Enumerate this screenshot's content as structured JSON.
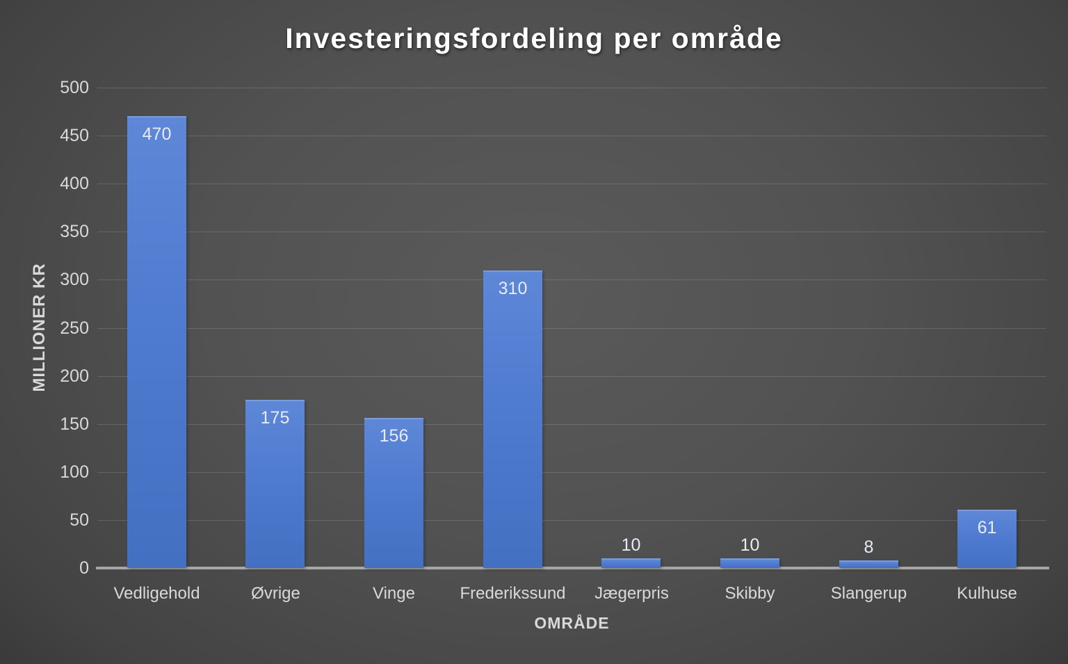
{
  "title": "Investeringsfordeling per område",
  "chart_data": {
    "type": "bar",
    "title": "Investeringsfordeling per område",
    "categories": [
      "Vedligehold",
      "Øvrige",
      "Vinge",
      "Frederikssund",
      "Jægerpris",
      "Skibby",
      "Slangerup",
      "Kulhuse"
    ],
    "values": [
      470,
      175,
      156,
      310,
      10,
      10,
      8,
      61
    ],
    "xlabel": "OMRÅDE",
    "ylabel": "MILLIONER KR",
    "ylim": [
      0,
      500
    ],
    "ytick_step": 50,
    "grid": true,
    "legend": false,
    "data_labels": true,
    "inside_label_threshold": 50,
    "colors": {
      "bar": "#4470c2",
      "bar_highlight": "#7c9cdd",
      "axis_line": "#a6a6a6",
      "tick_label": "#d9d9d9",
      "data_label": "#e6ebf6",
      "title": "#ffffff",
      "gridline": "rgba(255,255,255,0.14)",
      "background_center": "#5a5a5a",
      "background_edge": "#232323"
    }
  }
}
